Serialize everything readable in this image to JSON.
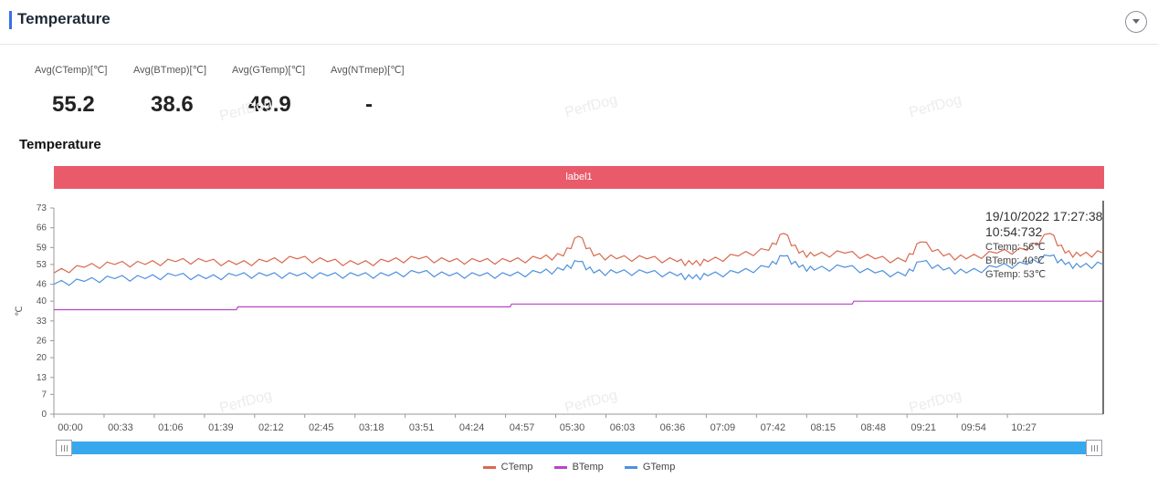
{
  "header": {
    "title": "Temperature"
  },
  "stats": [
    {
      "label": "Avg(CTemp)[℃]",
      "value": "55.2"
    },
    {
      "label": "Avg(BTmep)[℃]",
      "value": "38.6"
    },
    {
      "label": "Avg(GTemp)[℃]",
      "value": "49.9"
    },
    {
      "label": "Avg(NTmep)[℃]",
      "value": "-"
    }
  ],
  "watermark": "PerfDog",
  "chart_data": {
    "type": "line",
    "title": "Temperature",
    "band_label": "label1",
    "ylabel": "℃",
    "ylim": [
      0,
      73
    ],
    "yticks": [
      0,
      7,
      13,
      20,
      26,
      33,
      40,
      46,
      53,
      59,
      66,
      73
    ],
    "xlim_seconds": [
      0,
      690
    ],
    "xticks": [
      "00:00",
      "00:33",
      "01:06",
      "01:39",
      "02:12",
      "02:45",
      "03:18",
      "03:51",
      "04:24",
      "04:57",
      "05:30",
      "06:03",
      "06:36",
      "07:09",
      "07:42",
      "08:15",
      "08:48",
      "09:21",
      "09:54",
      "10:27"
    ],
    "grid": false,
    "legend_position": "bottom",
    "series": [
      {
        "name": "CTemp",
        "color": "#d9694f",
        "x": [
          0,
          20,
          40,
          60,
          80,
          100,
          120,
          140,
          160,
          180,
          200,
          220,
          240,
          260,
          280,
          300,
          320,
          335,
          345,
          355,
          370,
          390,
          410,
          420,
          430,
          450,
          470,
          480,
          490,
          500,
          520,
          540,
          560,
          570,
          585,
          600,
          620,
          640,
          655,
          665,
          675,
          690
        ],
        "values": [
          50,
          52,
          53,
          53,
          54,
          54,
          53,
          54,
          55,
          54,
          53,
          54,
          55,
          54,
          54,
          54,
          55,
          56,
          63,
          56,
          55,
          55,
          54,
          53,
          54,
          56,
          58,
          64,
          57,
          56,
          57,
          55,
          54,
          61,
          56,
          55,
          57,
          58,
          64,
          57,
          56,
          57
        ]
      },
      {
        "name": "BTemp",
        "color": "#b745c4",
        "x": [
          0,
          120,
          121,
          300,
          301,
          525,
          526,
          690
        ],
        "values": [
          37,
          37,
          38,
          38,
          39,
          39,
          40,
          40
        ]
      },
      {
        "name": "GTemp",
        "color": "#4d90df",
        "x": [
          0,
          20,
          40,
          60,
          80,
          100,
          120,
          140,
          160,
          180,
          200,
          220,
          240,
          260,
          280,
          300,
          320,
          335,
          345,
          355,
          370,
          390,
          410,
          420,
          430,
          450,
          470,
          480,
          490,
          500,
          520,
          540,
          560,
          570,
          585,
          600,
          620,
          640,
          655,
          665,
          675,
          690
        ],
        "values": [
          46,
          47,
          48,
          48,
          49,
          48,
          49,
          49,
          49,
          49,
          49,
          49,
          50,
          49,
          49,
          49,
          50,
          51,
          54,
          50,
          50,
          50,
          49,
          48,
          49,
          50,
          52,
          56,
          52,
          51,
          52,
          50,
          49,
          54,
          51,
          50,
          52,
          53,
          56,
          53,
          52,
          53
        ]
      }
    ],
    "tooltip": {
      "time": "19/10/2022 17:27:38",
      "elapsed": "10:54:732",
      "lines": [
        "CTemp: 56℃",
        "BTemp: 40℃",
        "GTemp: 53℃"
      ]
    }
  },
  "colors": {
    "accent": "#3b6fe8",
    "band": "#e95b6a",
    "slider": "#37a8ee"
  },
  "icons": {
    "collapse": "chevron-down-circle-icon",
    "handle": "grip-icon"
  }
}
